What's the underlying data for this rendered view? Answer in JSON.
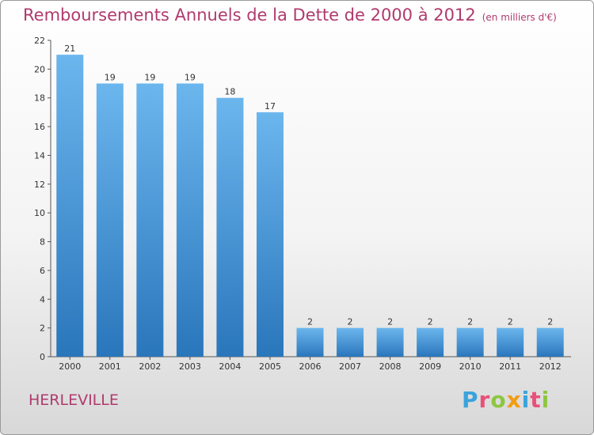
{
  "title": "Remboursements Annuels de la Dette de 2000 à 2012",
  "unit": "(en milliers d'€)",
  "commune": "HERLEVILLE",
  "logo": {
    "text": "Proxiti",
    "letter_colors": [
      "#3aa3dc",
      "#e8507a",
      "#8dc63f",
      "#f39c12",
      "#3aa3dc",
      "#e8507a",
      "#8dc63f"
    ]
  },
  "colors": {
    "bar": "#4a9fe0",
    "bar_light": "#6cb6ee",
    "bar_dark": "#2a76bb",
    "title": "#b03a6e"
  },
  "chart_data": {
    "type": "bar",
    "categories": [
      "2000",
      "2001",
      "2002",
      "2003",
      "2004",
      "2005",
      "2006",
      "2007",
      "2008",
      "2009",
      "2010",
      "2011",
      "2012"
    ],
    "values": [
      21,
      19,
      19,
      19,
      18,
      17,
      2,
      2,
      2,
      2,
      2,
      2,
      2
    ],
    "ylim": [
      0,
      22
    ],
    "yticks": [
      0,
      2,
      4,
      6,
      8,
      10,
      12,
      14,
      16,
      18,
      20,
      22
    ],
    "grid": false,
    "legend": "none"
  }
}
